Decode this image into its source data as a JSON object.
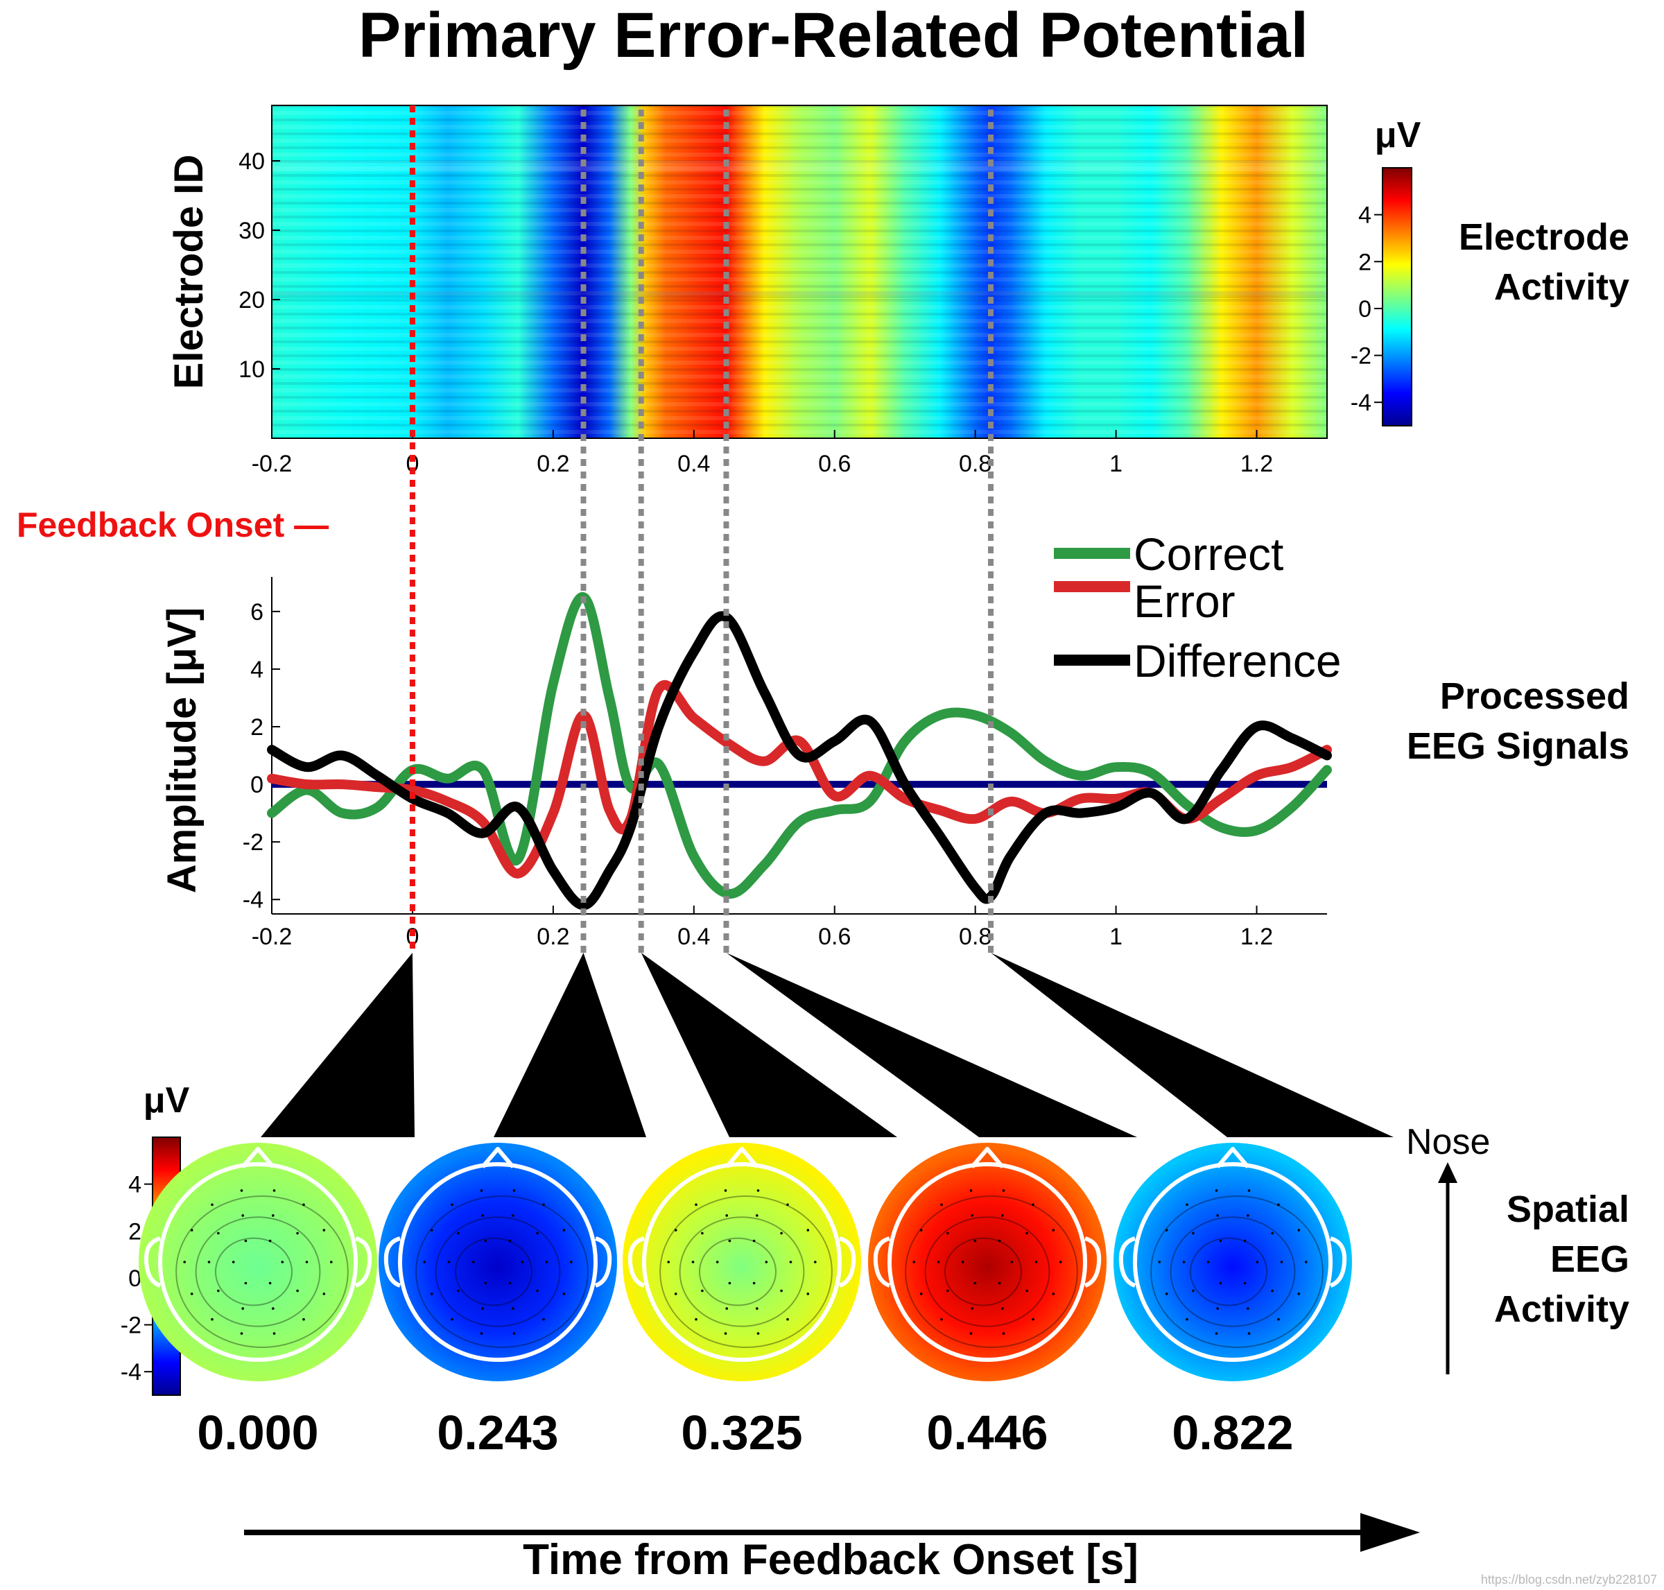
{
  "title": "Primary Error-Related Potential",
  "watermark": "https://blog.csdn.net/zyb228107",
  "colors": {
    "correct": "#2e9a44",
    "error": "#d9282a",
    "difference": "#000000",
    "baseline": "#000080",
    "onset_line": "#ee1111",
    "marker_lines": "#888888"
  },
  "chart_data": [
    {
      "type": "heatmap",
      "id": "electrode-activity",
      "label_line1": "Electrode",
      "label_line2": "Activity",
      "ylabel": "Electrode ID",
      "xlim": [
        -0.2,
        1.3
      ],
      "ylim": [
        0,
        48
      ],
      "x_ticks": [
        "-0.2",
        "0",
        "0.2",
        "0.4",
        "0.6",
        "0.8",
        "1",
        "1.2"
      ],
      "y_ticks": [
        "10",
        "20",
        "30",
        "40"
      ],
      "colorbar": {
        "unit": "μV",
        "range": [
          -5,
          6
        ],
        "ticks": [
          "4",
          "2",
          "0",
          "-2",
          "-4"
        ]
      },
      "temporal_profile": {
        "time": [
          -0.2,
          -0.1,
          0.0,
          0.05,
          0.1,
          0.15,
          0.2,
          0.243,
          0.28,
          0.31,
          0.33,
          0.36,
          0.4,
          0.446,
          0.5,
          0.55,
          0.6,
          0.65,
          0.7,
          0.75,
          0.8,
          0.822,
          0.85,
          0.9,
          0.95,
          1.0,
          1.05,
          1.1,
          1.15,
          1.2,
          1.25,
          1.3
        ],
        "amplitude": [
          -0.5,
          -0.8,
          -1.0,
          -1.6,
          -1.2,
          -0.5,
          -2.5,
          -4.2,
          -2.5,
          0.5,
          2.5,
          3.5,
          4.0,
          4.5,
          2.0,
          1.0,
          0.5,
          1.5,
          0.0,
          -1.0,
          -2.5,
          -3.0,
          -2.5,
          -1.0,
          -0.5,
          -0.5,
          -0.8,
          0.0,
          2.0,
          3.0,
          1.5,
          0.5
        ]
      }
    },
    {
      "type": "line",
      "id": "processed-eeg",
      "label_line1": "Processed",
      "label_line2": "EEG Signals",
      "ylabel": "Amplitude [μV]",
      "xlim": [
        -0.2,
        1.3
      ],
      "ylim": [
        -4.5,
        7.2
      ],
      "x_ticks": [
        "-0.2",
        "0",
        "0.2",
        "0.4",
        "0.6",
        "0.8",
        "1",
        "1.2"
      ],
      "y_ticks": [
        "6",
        "4",
        "2",
        "0",
        "-2",
        "-4"
      ],
      "series": [
        {
          "name": "Correct",
          "x": [
            -0.2,
            -0.15,
            -0.1,
            -0.05,
            0.0,
            0.05,
            0.1,
            0.15,
            0.2,
            0.243,
            0.28,
            0.31,
            0.35,
            0.4,
            0.45,
            0.5,
            0.55,
            0.6,
            0.65,
            0.7,
            0.75,
            0.8,
            0.85,
            0.9,
            0.95,
            1.0,
            1.05,
            1.1,
            1.15,
            1.2,
            1.25,
            1.3
          ],
          "y": [
            -1.0,
            -0.2,
            -1.0,
            -0.8,
            0.5,
            0.2,
            0.5,
            -2.6,
            3.5,
            6.5,
            3.0,
            -0.1,
            0.7,
            -2.5,
            -3.8,
            -2.8,
            -1.3,
            -0.9,
            -0.6,
            1.5,
            2.4,
            2.4,
            1.8,
            0.8,
            0.3,
            0.6,
            0.4,
            -0.7,
            -1.5,
            -1.6,
            -0.8,
            0.5
          ]
        },
        {
          "name": "Error",
          "x": [
            -0.2,
            -0.15,
            -0.1,
            -0.05,
            0.0,
            0.05,
            0.1,
            0.15,
            0.2,
            0.243,
            0.28,
            0.31,
            0.35,
            0.4,
            0.45,
            0.5,
            0.55,
            0.6,
            0.65,
            0.7,
            0.75,
            0.8,
            0.85,
            0.9,
            0.95,
            1.0,
            1.05,
            1.1,
            1.15,
            1.2,
            1.25,
            1.3
          ],
          "y": [
            0.2,
            0.0,
            0.0,
            -0.1,
            -0.2,
            -0.6,
            -1.3,
            -3.1,
            -1.0,
            2.4,
            -0.9,
            -1.2,
            3.3,
            2.3,
            1.4,
            0.8,
            1.5,
            -0.4,
            0.3,
            -0.5,
            -0.9,
            -1.2,
            -0.6,
            -1.0,
            -0.5,
            -0.5,
            -0.3,
            -1.2,
            -0.5,
            0.3,
            0.6,
            1.2
          ]
        },
        {
          "name": "Difference",
          "x": [
            -0.2,
            -0.15,
            -0.1,
            -0.05,
            0.0,
            0.05,
            0.1,
            0.15,
            0.2,
            0.243,
            0.28,
            0.31,
            0.35,
            0.4,
            0.446,
            0.5,
            0.55,
            0.6,
            0.65,
            0.7,
            0.75,
            0.8,
            0.822,
            0.85,
            0.9,
            0.95,
            1.0,
            1.05,
            1.1,
            1.15,
            1.2,
            1.25,
            1.3
          ],
          "y": [
            1.2,
            0.6,
            1.0,
            0.3,
            -0.5,
            -1.0,
            -1.7,
            -0.8,
            -3.0,
            -4.2,
            -3.0,
            -1.5,
            2.0,
            4.6,
            5.8,
            3.2,
            1.0,
            1.5,
            2.2,
            0.0,
            -1.8,
            -3.6,
            -3.9,
            -2.5,
            -1.0,
            -1.0,
            -0.8,
            -0.3,
            -1.2,
            0.5,
            2.0,
            1.6,
            1.0
          ]
        }
      ],
      "baseline": 0
    },
    {
      "type": "heatmap",
      "id": "spatial-eeg",
      "label_line1": "Spatial",
      "label_line2": "EEG",
      "label_line3": "Activity",
      "nose_label": "Nose",
      "colorbar": {
        "unit": "μV",
        "range": [
          -5,
          6
        ],
        "ticks": [
          "4",
          "2",
          "0",
          "-2",
          "-4"
        ]
      },
      "times": [
        "0.000",
        "0.243",
        "0.325",
        "0.446",
        "0.822"
      ],
      "time_values": [
        0.0,
        0.243,
        0.325,
        0.446,
        0.822
      ],
      "center_uV": [
        0.3,
        -4.2,
        0.5,
        5.5,
        -3.5
      ],
      "edge_uV": [
        1.0,
        -2.2,
        2.0,
        3.5,
        -1.5
      ],
      "axis_label": "Time from Feedback Onset [s]"
    }
  ],
  "feedback_onset_label": "Feedback Onset —"
}
